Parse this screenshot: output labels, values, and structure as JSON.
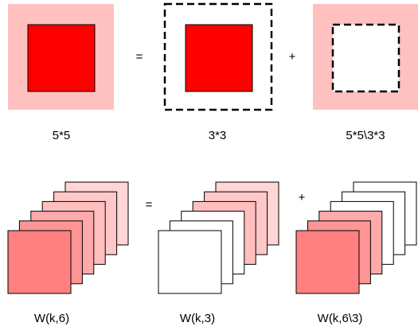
{
  "top_row": {
    "operators": {
      "equals": "=",
      "plus": "+"
    },
    "labels": {
      "full": "5*5",
      "center": "3*3",
      "ring": "5*5\\3*3"
    }
  },
  "bottom_row": {
    "operators": {
      "equals": "=",
      "plus": "+"
    },
    "labels": {
      "full": "W(k,6)",
      "center": "W(k,3)",
      "ring": "W(k,6\\3)"
    }
  },
  "colors": {
    "outer_pink": "#FFC0C0",
    "inner_red": "#FF0000",
    "stack_palette": [
      "#FF8080",
      "#FF9595",
      "#FFAAAA",
      "#FFBFBF",
      "#FFC8C8",
      "#FFD5D5"
    ],
    "blank": "#FFFFFF",
    "stroke": "#000000"
  }
}
